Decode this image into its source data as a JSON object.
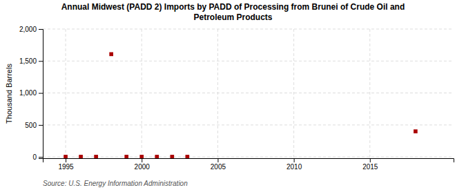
{
  "chart_data": {
    "type": "scatter",
    "title": "Annual Midwest (PADD 2) Imports by PADD of Processing from Brunei of Crude Oil and\nPetroleum Products",
    "ylabel": "Thousand Barrels",
    "source": "Source: U.S. Energy Information Administration",
    "x": [
      1995,
      1996,
      1997,
      1998,
      1999,
      2000,
      2001,
      2002,
      2003,
      2018
    ],
    "values": [
      3,
      3,
      3,
      1607,
      3,
      3,
      3,
      3,
      3,
      400
    ],
    "color": "#aa0000",
    "marker": "square",
    "xlim": [
      1993.5,
      2020.5
    ],
    "ylim": [
      -20,
      2000
    ],
    "xticks": [
      1995,
      2000,
      2005,
      2010,
      2015
    ],
    "yticks": [
      0,
      500,
      {
        "value": 1000,
        "label": "1,000"
      },
      {
        "value": 1500,
        "label": "1,500"
      },
      {
        "value": 2000,
        "label": "2,000"
      }
    ],
    "grid": true
  }
}
